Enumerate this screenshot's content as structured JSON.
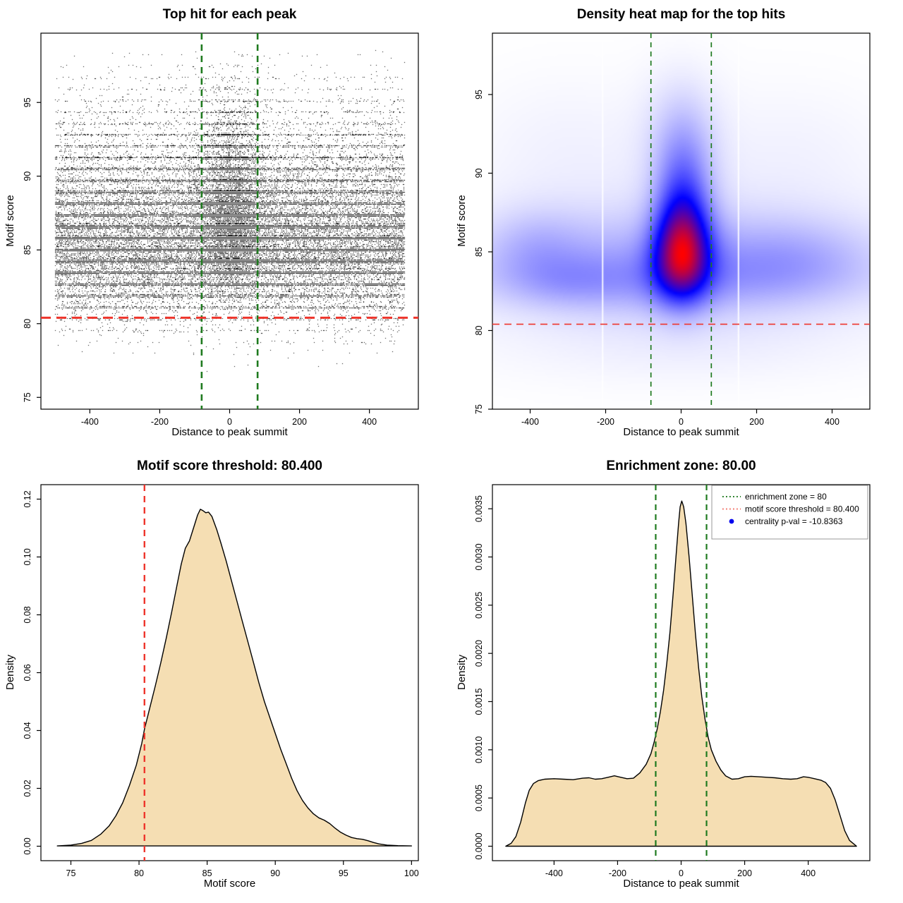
{
  "figure": {
    "background": "#ffffff",
    "description_colors": {
      "density_fill": "#f5deb3",
      "curve_stroke": "#000000",
      "threshold_red": "#ee352c",
      "zone_green": "#1f7a1f",
      "legend_green": "#1f7a1f",
      "legend_salmon": "#f2766b",
      "legend_blue": "#0000ee",
      "scatter_points": "#000000"
    }
  },
  "chart_data": [
    {
      "id": "top-hit-scatter",
      "type": "scatter",
      "title": "Top hit for each peak",
      "xlabel": "Distance to peak summit",
      "ylabel": "Motif score",
      "xlim": [
        -540,
        540
      ],
      "ylim": [
        74.2,
        99.7
      ],
      "xticks": {
        "values": [
          -400,
          -200,
          0,
          200,
          400
        ],
        "labels": [
          "-400",
          "-200",
          "0",
          "200",
          "400"
        ]
      },
      "yticks": {
        "values": [
          75,
          80,
          85,
          90,
          95
        ],
        "labels": [
          "75",
          "80",
          "85",
          "90",
          "95"
        ]
      },
      "hline": {
        "y": 80.4,
        "color": "#ee352c",
        "dash": [
          14,
          8
        ],
        "width": 3
      },
      "vlines": {
        "x": [
          -80,
          80
        ],
        "color": "#1f7a1f",
        "dash": [
          9,
          7
        ],
        "width": 2.6
      },
      "points": {
        "color": "#000000",
        "seed": 42,
        "n_background": 40000,
        "n_cluster": 11000,
        "x_background_uniform": [
          -500,
          500
        ],
        "x_cluster_normal": {
          "mu": 8,
          "sd": 45
        },
        "y_background_mixture": [
          {
            "w": 0.5,
            "mu": 84.6,
            "sd": 2.0
          },
          {
            "w": 0.33,
            "mu": 87.0,
            "sd": 2.6
          },
          {
            "w": 0.17,
            "mu": 90.0,
            "sd": 3.2
          }
        ],
        "y_cluster_mixture": [
          {
            "w": 0.4,
            "mu": 85.5,
            "sd": 1.6
          },
          {
            "w": 0.35,
            "mu": 87.8,
            "sd": 2.0
          },
          {
            "w": 0.25,
            "mu": 90.5,
            "sd": 2.6
          }
        ],
        "band_period": 0.78,
        "band_fraction": 0.6,
        "band_jitter": 0.16,
        "quantize_step": 0.09,
        "y_clip": [
          74.3,
          98.6
        ]
      }
    },
    {
      "id": "density-heatmap",
      "type": "heatmap",
      "title": "Density heat map for the top hits",
      "xlabel": "Distance to peak summit",
      "ylabel": "Motif score",
      "xlim": [
        -500,
        500
      ],
      "ylim": [
        75,
        98.9
      ],
      "xticks": {
        "values": [
          -400,
          -200,
          0,
          200,
          400
        ],
        "labels": [
          "-400",
          "-200",
          "0",
          "200",
          "400"
        ]
      },
      "yticks": {
        "values": [
          75,
          80,
          85,
          90,
          95
        ],
        "labels": [
          "75",
          "80",
          "85",
          "90",
          "95"
        ]
      },
      "hline": {
        "y": 80.4,
        "color": "#ee352c",
        "dash": [
          10,
          7
        ],
        "width": 1.7
      },
      "vlines": {
        "x": [
          -80,
          80
        ],
        "color": "#1f7a1f",
        "dash": [
          7,
          6
        ],
        "width": 1.7
      },
      "colormap": {
        "low": "#ffffff",
        "mid": "#0000ff",
        "high": "#ff0000",
        "gamma": 1.35
      },
      "white_gaps_x": [
        -208,
        152
      ],
      "blobs": [
        {
          "x": 5,
          "y": 86.3,
          "sx": 52,
          "sy": 2.4,
          "a": 1.0
        },
        {
          "x": 0,
          "y": 84.2,
          "sx": 55,
          "sy": 1.9,
          "a": 0.8
        },
        {
          "x": 5,
          "y": 90.3,
          "sx": 58,
          "sy": 2.6,
          "a": 0.45
        },
        {
          "x": 0,
          "y": 93.5,
          "sx": 75,
          "sy": 2.8,
          "a": 0.2
        },
        {
          "x": 0,
          "y": 85.0,
          "sx": 430,
          "sy": 2.1,
          "a": 0.36
        },
        {
          "x": -60,
          "y": 83.2,
          "sx": 420,
          "sy": 1.4,
          "a": 0.26
        },
        {
          "x": 0,
          "y": 81.6,
          "sx": 430,
          "sy": 1.6,
          "a": 0.14
        },
        {
          "x": 0,
          "y": 78.6,
          "sx": 420,
          "sy": 1.6,
          "a": 0.1
        },
        {
          "x": 0,
          "y": 86.5,
          "sx": 470,
          "sy": 5.8,
          "a": 0.18
        },
        {
          "x": -390,
          "y": 85.5,
          "sx": 95,
          "sy": 1.7,
          "a": 0.22
        },
        {
          "x": -300,
          "y": 83.0,
          "sx": 110,
          "sy": 1.2,
          "a": 0.14
        },
        {
          "x": 310,
          "y": 84.7,
          "sx": 140,
          "sy": 1.7,
          "a": 0.18
        },
        {
          "x": -330,
          "y": 92.5,
          "sx": 160,
          "sy": 3.2,
          "a": 0.07
        },
        {
          "x": 330,
          "y": 92.0,
          "sx": 160,
          "sy": 3.0,
          "a": 0.06
        }
      ]
    },
    {
      "id": "motif-score-density",
      "type": "density",
      "title": "Motif score threshold: 80.400",
      "xlabel": "Motif score",
      "ylabel": "Density",
      "xlim": [
        72.8,
        100.5
      ],
      "ylim": [
        -0.005,
        0.125
      ],
      "xticks": {
        "values": [
          75,
          80,
          85,
          90,
          95,
          100
        ],
        "labels": [
          "75",
          "80",
          "85",
          "90",
          "95",
          "100"
        ]
      },
      "yticks": {
        "values": [
          0,
          0.02,
          0.04,
          0.06,
          0.08,
          0.1,
          0.12
        ],
        "labels": [
          "0.00",
          "0.02",
          "0.04",
          "0.06",
          "0.08",
          "0.10",
          "0.12"
        ]
      },
      "fill": "#f5deb3",
      "stroke": "#000000",
      "vlines": {
        "x": [
          80.4
        ],
        "color": "#ee352c",
        "dash": [
          9,
          7
        ],
        "width": 2.4
      },
      "curve": [
        [
          74,
          0.0001
        ],
        [
          75,
          0.0004
        ],
        [
          75.8,
          0.001
        ],
        [
          76.5,
          0.002
        ],
        [
          77.2,
          0.0042
        ],
        [
          77.8,
          0.007
        ],
        [
          78.3,
          0.0105
        ],
        [
          78.8,
          0.015
        ],
        [
          79.3,
          0.021
        ],
        [
          79.8,
          0.028
        ],
        [
          80.2,
          0.0355
        ],
        [
          80.4,
          0.0405
        ],
        [
          80.8,
          0.048
        ],
        [
          81.2,
          0.0555
        ],
        [
          81.6,
          0.0635
        ],
        [
          82.0,
          0.072
        ],
        [
          82.4,
          0.081
        ],
        [
          82.8,
          0.0905
        ],
        [
          83.1,
          0.0975
        ],
        [
          83.4,
          0.103
        ],
        [
          83.7,
          0.1055
        ],
        [
          84.0,
          0.11
        ],
        [
          84.3,
          0.1145
        ],
        [
          84.5,
          0.1165
        ],
        [
          84.7,
          0.116
        ],
        [
          84.9,
          0.1153
        ],
        [
          85.1,
          0.1155
        ],
        [
          85.35,
          0.114
        ],
        [
          85.7,
          0.1095
        ],
        [
          86.0,
          0.105
        ],
        [
          86.4,
          0.0985
        ],
        [
          86.8,
          0.0915
        ],
        [
          87.2,
          0.0845
        ],
        [
          87.6,
          0.0775
        ],
        [
          88.0,
          0.0705
        ],
        [
          88.4,
          0.0635
        ],
        [
          88.8,
          0.0565
        ],
        [
          89.2,
          0.05
        ],
        [
          89.6,
          0.0445
        ],
        [
          90.0,
          0.039
        ],
        [
          90.4,
          0.0335
        ],
        [
          90.8,
          0.0285
        ],
        [
          91.2,
          0.0235
        ],
        [
          91.6,
          0.0192
        ],
        [
          92.0,
          0.0158
        ],
        [
          92.4,
          0.0132
        ],
        [
          92.8,
          0.0112
        ],
        [
          93.2,
          0.0098
        ],
        [
          93.6,
          0.009
        ],
        [
          94.0,
          0.0078
        ],
        [
          94.4,
          0.0062
        ],
        [
          94.8,
          0.0048
        ],
        [
          95.2,
          0.0038
        ],
        [
          95.6,
          0.003
        ],
        [
          96.0,
          0.0026
        ],
        [
          96.4,
          0.0024
        ],
        [
          96.8,
          0.0019
        ],
        [
          97.2,
          0.0013
        ],
        [
          97.6,
          0.0008
        ],
        [
          98.2,
          0.0004
        ],
        [
          99.0,
          0.0002
        ],
        [
          100,
          0.0001
        ]
      ]
    },
    {
      "id": "distance-density",
      "type": "density",
      "title": "Enrichment zone: 80.00",
      "xlabel": "Distance to peak summit",
      "ylabel": "Density",
      "xlim": [
        -594,
        594
      ],
      "ylim": [
        -0.00015,
        0.00375
      ],
      "xticks": {
        "values": [
          -400,
          -200,
          0,
          200,
          400
        ],
        "labels": [
          "-400",
          "-200",
          "0",
          "200",
          "400"
        ]
      },
      "yticks": {
        "values": [
          0,
          0.0005,
          0.001,
          0.0015,
          0.002,
          0.0025,
          0.003,
          0.0035
        ],
        "labels": [
          "0.0000",
          "0.0005",
          "0.0010",
          "0.0015",
          "0.0020",
          "0.0025",
          "0.0030",
          "0.0035"
        ]
      },
      "fill": "#f5deb3",
      "stroke": "#000000",
      "vlines": {
        "x": [
          -80,
          80
        ],
        "color": "#1f7a1f",
        "dash": [
          8,
          6
        ],
        "width": 2.2
      },
      "legend": {
        "entries": [
          {
            "label": "enrichment zone = 80",
            "marker": "dotted-line",
            "color": "#1f7a1f"
          },
          {
            "label": "motif score threshold = 80.400",
            "marker": "dotted-line",
            "color": "#f2766b"
          },
          {
            "label": "centrality p-val = -10.8363",
            "marker": "dot",
            "color": "#0000ee"
          }
        ]
      },
      "curve": [
        [
          -552,
          0
        ],
        [
          -535,
          3e-05
        ],
        [
          -520,
          0.0001
        ],
        [
          -505,
          0.00025
        ],
        [
          -490,
          0.00045
        ],
        [
          -478,
          0.00058
        ],
        [
          -465,
          0.00065
        ],
        [
          -450,
          0.00068
        ],
        [
          -430,
          0.000695
        ],
        [
          -400,
          0.0007
        ],
        [
          -370,
          0.000695
        ],
        [
          -340,
          0.00069
        ],
        [
          -310,
          0.000705
        ],
        [
          -290,
          0.00071
        ],
        [
          -270,
          0.000695
        ],
        [
          -250,
          0.0007
        ],
        [
          -230,
          0.000715
        ],
        [
          -210,
          0.00073
        ],
        [
          -190,
          0.000715
        ],
        [
          -170,
          0.0007
        ],
        [
          -150,
          0.000705
        ],
        [
          -130,
          0.00076
        ],
        [
          -110,
          0.00085
        ],
        [
          -95,
          0.00096
        ],
        [
          -85,
          0.00108
        ],
        [
          -75,
          0.00122
        ],
        [
          -65,
          0.0014
        ],
        [
          -55,
          0.00162
        ],
        [
          -45,
          0.0019
        ],
        [
          -35,
          0.00222
        ],
        [
          -25,
          0.00262
        ],
        [
          -15,
          0.00305
        ],
        [
          -8,
          0.00335
        ],
        [
          -3,
          0.00352
        ],
        [
          2,
          0.00358
        ],
        [
          8,
          0.00352
        ],
        [
          15,
          0.00335
        ],
        [
          25,
          0.003
        ],
        [
          35,
          0.0026
        ],
        [
          45,
          0.0022
        ],
        [
          55,
          0.00185
        ],
        [
          65,
          0.00155
        ],
        [
          75,
          0.00132
        ],
        [
          85,
          0.00113
        ],
        [
          95,
          0.001
        ],
        [
          110,
          0.00088
        ],
        [
          125,
          0.00079
        ],
        [
          140,
          0.00073
        ],
        [
          160,
          0.000695
        ],
        [
          180,
          0.0007
        ],
        [
          200,
          0.00072
        ],
        [
          220,
          0.000725
        ],
        [
          245,
          0.00072
        ],
        [
          270,
          0.000715
        ],
        [
          295,
          0.00071
        ],
        [
          320,
          0.0007
        ],
        [
          345,
          0.000695
        ],
        [
          365,
          0.0007
        ],
        [
          385,
          0.00072
        ],
        [
          400,
          0.000715
        ],
        [
          420,
          0.0007
        ],
        [
          440,
          0.000685
        ],
        [
          455,
          0.00066
        ],
        [
          470,
          0.0006
        ],
        [
          485,
          0.00048
        ],
        [
          500,
          0.00032
        ],
        [
          515,
          0.00016
        ],
        [
          530,
          6e-05
        ],
        [
          545,
          2e-05
        ],
        [
          552,
          0
        ]
      ]
    }
  ]
}
